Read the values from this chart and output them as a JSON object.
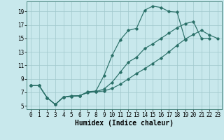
{
  "bg_color": "#c8e8ec",
  "line_color": "#2a7068",
  "grid_color": "#a0c8cc",
  "xlabel": "Humidex (Indice chaleur)",
  "xlabel_fontsize": 7,
  "tick_fontsize": 5.5,
  "yticks": [
    5,
    7,
    9,
    11,
    13,
    15,
    17,
    19
  ],
  "xlim": [
    -0.5,
    23.5
  ],
  "ylim": [
    4.5,
    20.5
  ],
  "line1_x": [
    0,
    1,
    2,
    3,
    4,
    5,
    6,
    7,
    8,
    9,
    10,
    11,
    12,
    13,
    14,
    15,
    16,
    17,
    18,
    19
  ],
  "line1_y": [
    8.0,
    8.0,
    6.2,
    5.2,
    6.3,
    6.4,
    6.5,
    7.1,
    7.2,
    9.5,
    12.5,
    14.8,
    16.2,
    16.5,
    19.2,
    19.8,
    19.6,
    19.0,
    18.9,
    14.8
  ],
  "line2_x": [
    0,
    1,
    2,
    3,
    4,
    5,
    6,
    7,
    8,
    9,
    10,
    11,
    12,
    13,
    14,
    15,
    16,
    17,
    18,
    19,
    20,
    21,
    22
  ],
  "line2_y": [
    8.0,
    8.0,
    6.2,
    5.2,
    6.3,
    6.5,
    6.5,
    7.0,
    7.1,
    7.5,
    8.5,
    10.0,
    11.5,
    12.2,
    13.5,
    14.2,
    15.0,
    15.8,
    16.6,
    17.2,
    17.5,
    15.0,
    15.0
  ],
  "line3_x": [
    0,
    1,
    2,
    3,
    4,
    5,
    6,
    7,
    8,
    9,
    10,
    11,
    12,
    13,
    14,
    15,
    16,
    17,
    18,
    19,
    20,
    21,
    22,
    23
  ],
  "line3_y": [
    8.0,
    8.0,
    6.2,
    5.2,
    6.3,
    6.4,
    6.5,
    7.0,
    7.1,
    7.2,
    7.6,
    8.2,
    9.0,
    9.8,
    10.5,
    11.3,
    12.1,
    13.0,
    14.0,
    14.9,
    15.6,
    16.2,
    15.5,
    15.0
  ]
}
